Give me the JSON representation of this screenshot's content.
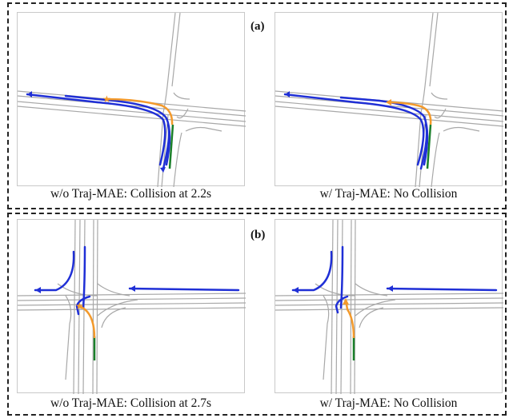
{
  "figure": {
    "group_a": {
      "label": "(a)",
      "left_caption": "w/o Traj-MAE: Collision at 2.2s",
      "right_caption": "w/ Traj-MAE: No Collision"
    },
    "group_b": {
      "label": "(b)",
      "left_caption": "w/o Traj-MAE: Collision at 2.7s",
      "right_caption": "w/ Traj-MAE: No Collision"
    }
  },
  "colors": {
    "road_lines": "#a8a8a8",
    "predicted_trajectory": "#1f2fd6",
    "ego_future": "#f39a2c",
    "ego_history": "#1a7f2a",
    "dash_border": "#222222"
  }
}
